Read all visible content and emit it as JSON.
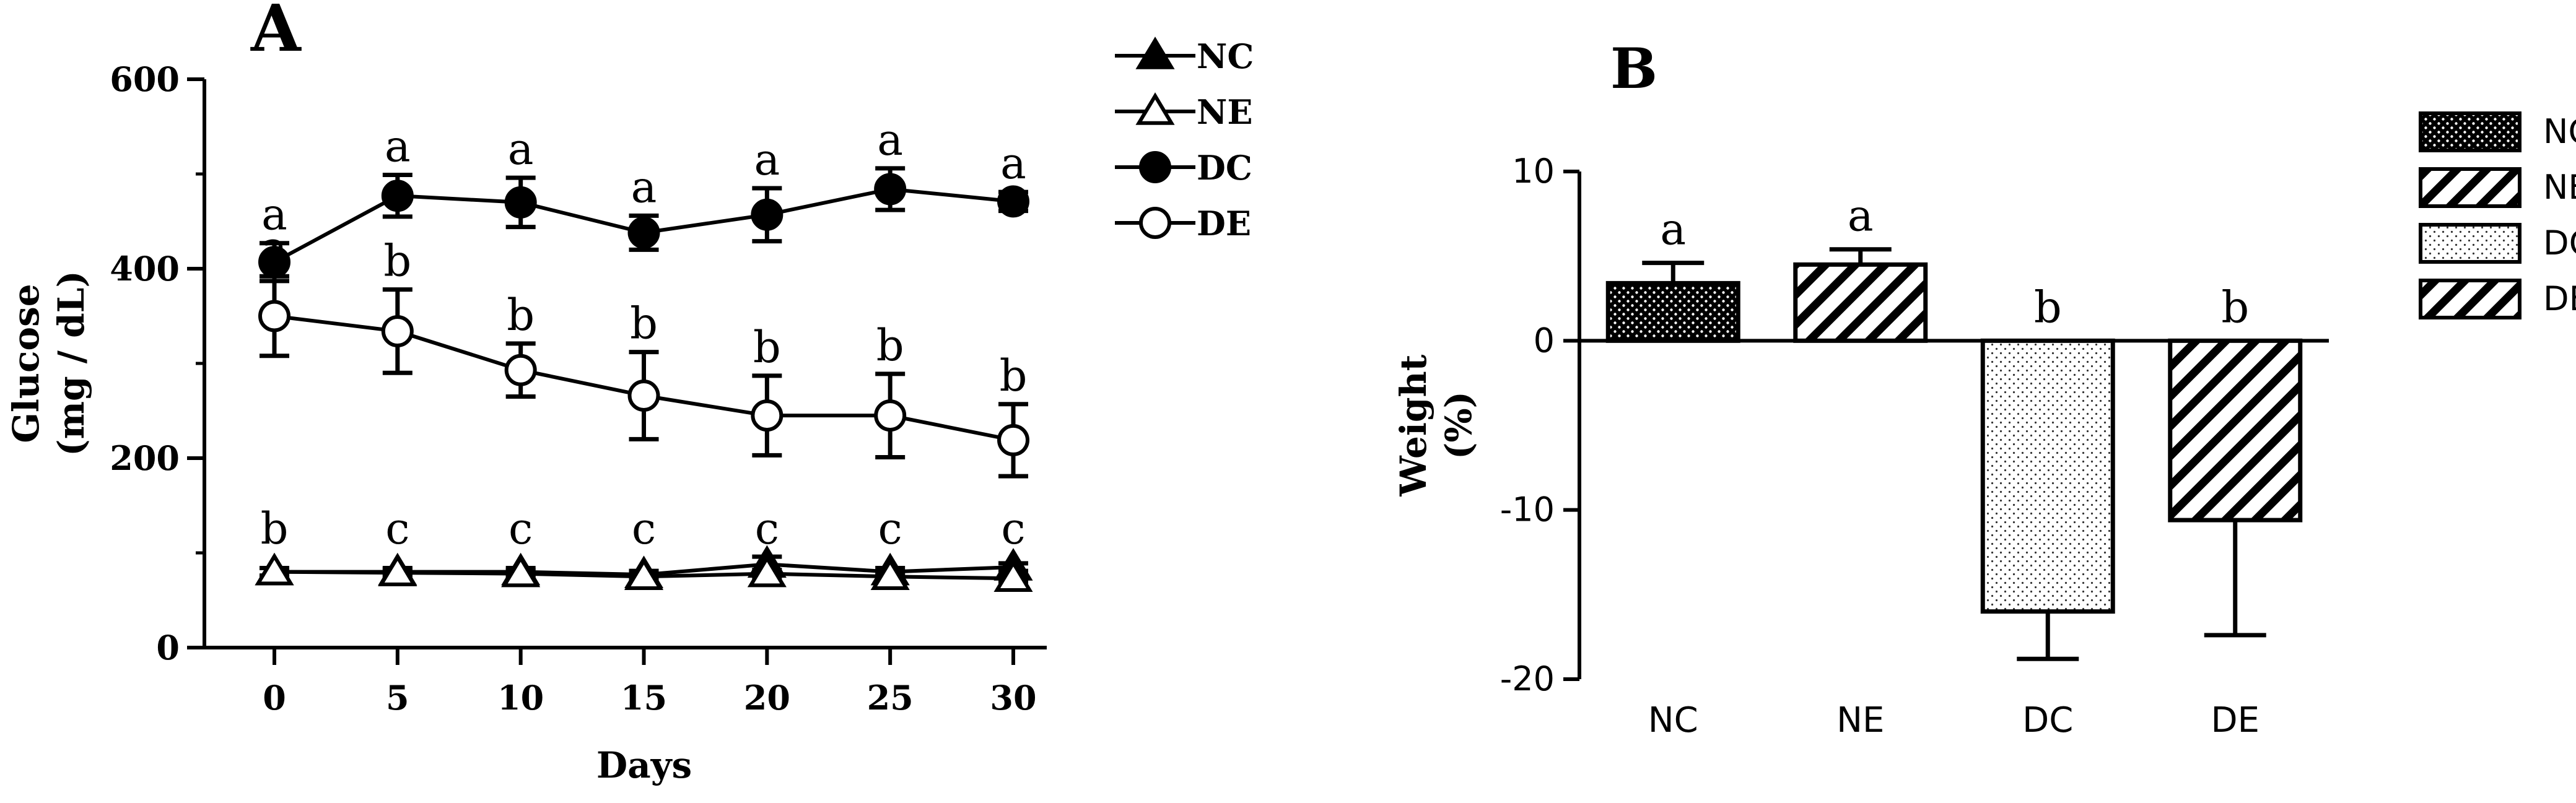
{
  "chart_data": [
    {
      "panel_label": "A",
      "type": "line",
      "xlabel": "Days",
      "ylabel_line1": "Glucose",
      "ylabel_line2": "(mg / dL)",
      "x": [
        0,
        5,
        10,
        15,
        20,
        25,
        30
      ],
      "xlim": [
        0,
        30
      ],
      "ylim": [
        0,
        600
      ],
      "yticks": [
        0,
        200,
        400,
        600
      ],
      "minor_yticks": [
        100,
        300,
        500
      ],
      "grid": false,
      "legend_position": "top-right outside",
      "series": [
        {
          "name": "NC",
          "marker": "filled-triangle",
          "values": [
            80,
            80,
            80,
            77,
            88,
            80,
            85
          ],
          "errors": [
            4,
            4,
            4,
            4,
            8,
            4,
            4
          ]
        },
        {
          "name": "NE",
          "marker": "open-triangle",
          "values": [
            80,
            79,
            78,
            75,
            78,
            75,
            73
          ],
          "errors": [
            4,
            4,
            4,
            4,
            4,
            4,
            4
          ]
        },
        {
          "name": "DC",
          "marker": "filled-circle",
          "values": [
            407,
            477,
            470,
            438,
            457,
            484,
            471
          ],
          "errors": [
            20,
            22,
            26,
            18,
            28,
            22,
            10
          ],
          "annotations": [
            "a",
            "a",
            "a",
            "a",
            "a",
            "a",
            "a"
          ]
        },
        {
          "name": "DE",
          "marker": "open-circle",
          "values": [
            350,
            334,
            293,
            266,
            245,
            245,
            219
          ],
          "errors": [
            42,
            44,
            28,
            46,
            42,
            44,
            38
          ],
          "annotations": [
            "a",
            "b",
            "b",
            "b",
            "b",
            "b",
            "b"
          ]
        }
      ],
      "low_group_annotations": [
        "b",
        "c",
        "c",
        "c",
        "c",
        "c",
        "c"
      ]
    },
    {
      "panel_label": "B",
      "type": "bar",
      "ylabel_line1": "Weight",
      "ylabel_line2": "(%)",
      "categories": [
        "NC",
        "NE",
        "DC",
        "DE"
      ],
      "values": [
        3.4,
        4.5,
        -16.0,
        -10.6
      ],
      "errors": [
        1.2,
        0.9,
        2.8,
        6.8
      ],
      "patterns": [
        "dense-dots",
        "diagonal-stripes",
        "sparse-dots",
        "diagonal-stripes"
      ],
      "annotations": [
        "a",
        "a",
        "b",
        "b"
      ],
      "ylim": [
        -20,
        10
      ],
      "yticks": [
        -20,
        -10,
        0,
        10
      ],
      "grid": false,
      "legend_position": "top-right outside",
      "legend": [
        "NC",
        "NE",
        "DC",
        "DE"
      ]
    }
  ]
}
